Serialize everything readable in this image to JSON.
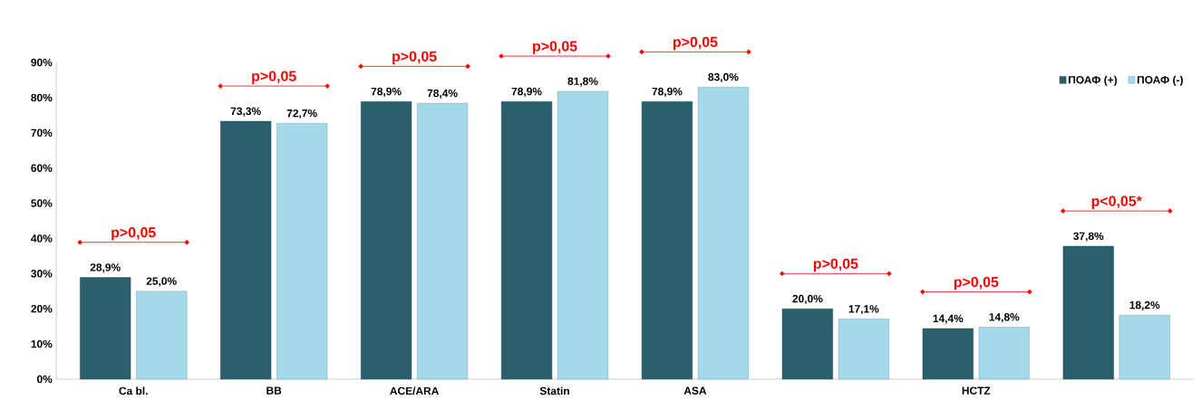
{
  "chart_data": {
    "type": "bar",
    "categories": [
      "Ca bl.",
      "BB",
      "ACE/ARA",
      "Statin",
      "ASA",
      null,
      "HCTZ",
      null
    ],
    "series": [
      {
        "name": "ПОАФ (+)",
        "color": "#2b5f6c",
        "values": [
          28.9,
          73.3,
          78.9,
          78.9,
          78.9,
          20.0,
          14.4,
          37.8
        ],
        "value_labels": [
          "28,9%",
          "73,3%",
          "78,9%",
          "78,9%",
          "78,9%",
          "20,0%",
          "14,4%",
          "37,8%"
        ]
      },
      {
        "name": "ПОАФ (-)",
        "color": "#a4d9ea",
        "values": [
          25.0,
          72.7,
          78.4,
          81.8,
          83.0,
          17.1,
          14.8,
          18.2
        ],
        "value_labels": [
          "25,0%",
          "72,7%",
          "78,4%",
          "81,8%",
          "83,0%",
          "17,1%",
          "14,8%",
          "18,2%"
        ]
      }
    ],
    "ylim": [
      0,
      90
    ],
    "yticks": [
      {
        "value": 0,
        "label": "0%"
      },
      {
        "value": 10,
        "label": "10%"
      },
      {
        "value": 20,
        "label": "20%"
      },
      {
        "value": 30,
        "label": "30%"
      },
      {
        "value": 40,
        "label": "40%"
      },
      {
        "value": 50,
        "label": "50%"
      },
      {
        "value": 60,
        "label": "60%"
      },
      {
        "value": 70,
        "label": "70%"
      },
      {
        "value": 80,
        "label": "80%"
      },
      {
        "value": 90,
        "label": "90%"
      }
    ],
    "annotations": [
      "p>0,05",
      "p>0,05",
      "p>0,05",
      "p>0,05",
      "p>0,05",
      "p>0,05",
      "p>0,05",
      "p<0,05*"
    ],
    "legend": "top right",
    "grid": false
  }
}
